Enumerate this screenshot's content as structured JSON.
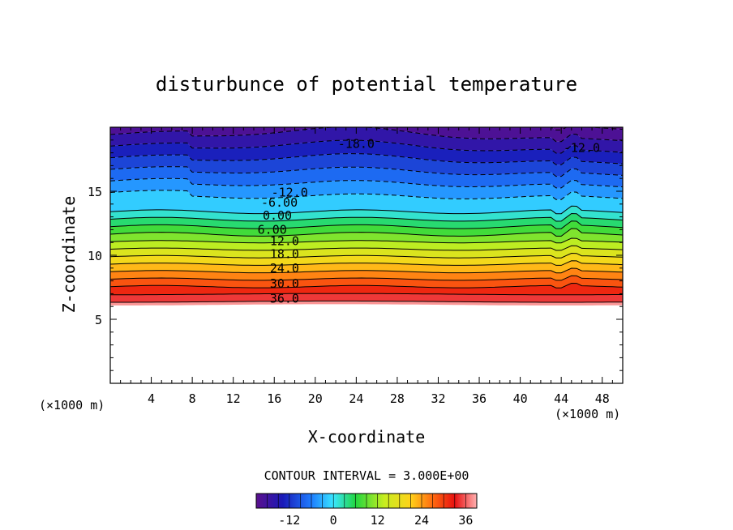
{
  "chart_data": {
    "type": "contour",
    "title": "disturbunce of potential temperature",
    "xlabel": "X-coordinate",
    "ylabel": "Z-coordinate",
    "x_unit": "(×1000 m)",
    "x_unit_right": "(×1000 m)",
    "xlim": [
      0,
      50
    ],
    "ylim": [
      0,
      20
    ],
    "x_ticks": [
      4,
      8,
      12,
      16,
      20,
      24,
      28,
      32,
      36,
      40,
      44,
      48
    ],
    "y_ticks": [
      5,
      10,
      15
    ],
    "contour_interval_text": "CONTOUR INTERVAL = 3.000E+00",
    "contour_interval": 3,
    "colorbar": {
      "min": -21,
      "max": 39,
      "ticks": [
        -12,
        0,
        12,
        24,
        36
      ]
    },
    "contour_labels": [
      {
        "text": "-18.0",
        "x": 24.0,
        "z": 18.7
      },
      {
        "text": "-12.0",
        "x": 46.0,
        "z": 18.4
      },
      {
        "text": "-12.0",
        "x": 17.5,
        "z": 14.9
      },
      {
        "text": "-6.00",
        "x": 16.5,
        "z": 14.1
      },
      {
        "text": "0.00",
        "x": 16.3,
        "z": 13.1
      },
      {
        "text": "6.00",
        "x": 15.8,
        "z": 12.0
      },
      {
        "text": "12.0",
        "x": 17.0,
        "z": 11.1
      },
      {
        "text": "18.0",
        "x": 17.0,
        "z": 10.1
      },
      {
        "text": "24.0",
        "x": 17.0,
        "z": 9.0
      },
      {
        "text": "30.0",
        "x": 17.0,
        "z": 7.8
      },
      {
        "text": "36.0",
        "x": 17.0,
        "z": 6.6
      }
    ]
  }
}
